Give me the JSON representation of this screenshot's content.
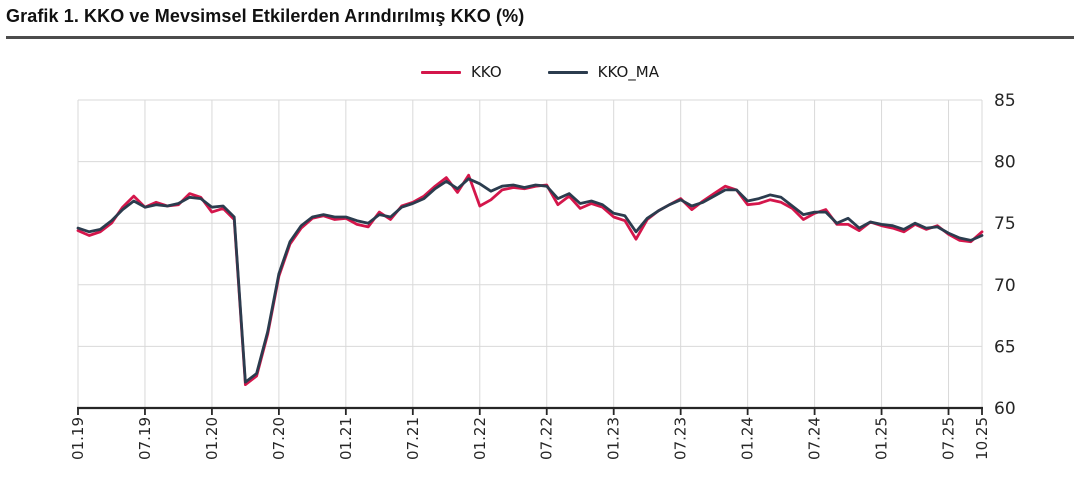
{
  "page": {
    "title": "Grafik 1. KKO ve Mevsimsel Etkilerden Arındırılmış KKO (%)"
  },
  "legend": {
    "items": [
      {
        "label": "KKO",
        "color": "#d4164b"
      },
      {
        "label": "KKO_MA",
        "color": "#2b3c4e"
      }
    ]
  },
  "colors": {
    "grid": "#d9d9d9",
    "axis": "#262626",
    "tick_text": "#262626",
    "title_rule": "#4c4c4c"
  },
  "chart_data": {
    "type": "line",
    "title": "Grafik 1. KKO ve Mevsimsel Etkilerden Arındırılmış KKO (%)",
    "x_unit": "month (MM.YY)",
    "x_start": "01.19",
    "x_end": "10.25",
    "frequency": "monthly",
    "x_tick_labels": [
      "01.19",
      "07.19",
      "01.20",
      "07.20",
      "01.21",
      "07.21",
      "01.22",
      "07.22",
      "01.23",
      "07.23",
      "01.24",
      "07.24",
      "01.25",
      "07.25",
      "10.25"
    ],
    "x_tick_month_indices": [
      0,
      6,
      12,
      18,
      24,
      30,
      36,
      42,
      48,
      54,
      60,
      66,
      72,
      78,
      81
    ],
    "ylim": [
      60,
      85
    ],
    "y_ticks": [
      60,
      65,
      70,
      75,
      80,
      85
    ],
    "y_axis_side": "right",
    "grid": true,
    "legend_position": "top-center",
    "series": [
      {
        "name": "KKO",
        "color": "#d4164b",
        "values": [
          74.4,
          74.0,
          74.3,
          75.0,
          76.3,
          77.2,
          76.3,
          76.7,
          76.4,
          76.5,
          77.4,
          77.1,
          75.9,
          76.2,
          75.3,
          61.9,
          62.6,
          66.0,
          70.7,
          73.3,
          74.6,
          75.4,
          75.6,
          75.3,
          75.4,
          74.9,
          74.7,
          75.9,
          75.3,
          76.4,
          76.7,
          77.2,
          78.0,
          78.7,
          77.5,
          78.9,
          76.4,
          76.9,
          77.7,
          77.9,
          77.8,
          78.0,
          78.1,
          76.5,
          77.2,
          76.2,
          76.6,
          76.3,
          75.5,
          75.2,
          73.7,
          75.3,
          76.0,
          76.5,
          77.0,
          76.1,
          76.8,
          77.4,
          78.0,
          77.7,
          76.5,
          76.6,
          76.9,
          76.7,
          76.2,
          75.3,
          75.8,
          76.1,
          74.9,
          74.9,
          74.4,
          75.1,
          74.8,
          74.6,
          74.3,
          74.9,
          74.5,
          74.8,
          74.1,
          73.6,
          73.5,
          74.3
        ]
      },
      {
        "name": "KKO_MA",
        "color": "#2b3c4e",
        "values": [
          74.6,
          74.3,
          74.5,
          75.2,
          76.1,
          76.8,
          76.3,
          76.5,
          76.4,
          76.6,
          77.1,
          77.0,
          76.3,
          76.4,
          75.5,
          62.1,
          62.8,
          66.2,
          70.9,
          73.5,
          74.8,
          75.5,
          75.7,
          75.5,
          75.5,
          75.2,
          75.0,
          75.7,
          75.5,
          76.3,
          76.6,
          77.0,
          77.8,
          78.4,
          77.8,
          78.6,
          78.2,
          77.6,
          78.0,
          78.1,
          77.9,
          78.1,
          78.0,
          77.0,
          77.4,
          76.6,
          76.8,
          76.5,
          75.8,
          75.6,
          74.3,
          75.4,
          76.0,
          76.5,
          76.9,
          76.4,
          76.7,
          77.2,
          77.7,
          77.7,
          76.8,
          77.0,
          77.3,
          77.1,
          76.4,
          75.7,
          75.9,
          75.9,
          75.0,
          75.4,
          74.6,
          75.1,
          74.9,
          74.8,
          74.5,
          75.0,
          74.6,
          74.7,
          74.2,
          73.8,
          73.6,
          74.0
        ]
      }
    ]
  }
}
